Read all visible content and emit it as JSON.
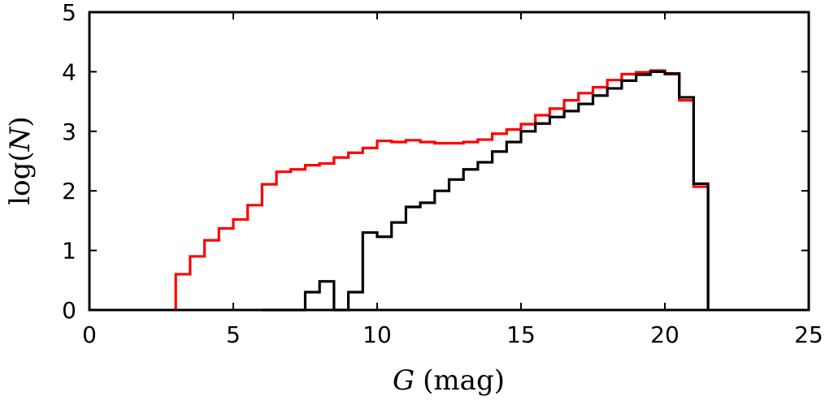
{
  "chart_data": {
    "type": "step-histogram",
    "xlabel_var": "G",
    "xlabel_unit": "(mag)",
    "ylabel_func": "log(",
    "ylabel_var": "N",
    "ylabel_close": ")",
    "xlim": [
      0,
      25
    ],
    "ylim": [
      0,
      5
    ],
    "xticks": [
      0,
      5,
      10,
      15,
      20,
      25
    ],
    "yticks": [
      0,
      1,
      2,
      3,
      4,
      5
    ],
    "xtick_labels": [
      "0",
      "5",
      "10",
      "15",
      "20",
      "25"
    ],
    "ytick_labels": [
      "0",
      "1",
      "2",
      "3",
      "4",
      "5"
    ],
    "bin_width": 0.5,
    "series": [
      {
        "name": "red",
        "color": "#ff0000",
        "bin_start": [
          3.0,
          3.5,
          4.0,
          4.5,
          5.0,
          5.5,
          6.0,
          6.5,
          7.0,
          7.5,
          8.0,
          8.5,
          9.0,
          9.5,
          10.0,
          10.5,
          11.0,
          11.5,
          12.0,
          12.5,
          13.0,
          13.5,
          14.0,
          14.5,
          15.0,
          15.5,
          16.0,
          16.5,
          17.0,
          17.5,
          18.0,
          18.5,
          19.0,
          19.5,
          20.0,
          20.5,
          21.0
        ],
        "values": [
          0.6,
          0.9,
          1.17,
          1.37,
          1.52,
          1.76,
          2.11,
          2.32,
          2.36,
          2.43,
          2.46,
          2.56,
          2.64,
          2.72,
          2.84,
          2.82,
          2.85,
          2.82,
          2.8,
          2.8,
          2.82,
          2.86,
          2.96,
          3.03,
          3.12,
          3.27,
          3.38,
          3.52,
          3.64,
          3.74,
          3.86,
          3.96,
          3.99,
          4.02,
          3.96,
          3.52,
          2.07
        ]
      },
      {
        "name": "black",
        "color": "#000000",
        "bin_start": [
          6.0,
          6.5,
          7.0,
          7.5,
          8.0,
          8.5,
          9.0,
          9.5,
          10.0,
          10.5,
          11.0,
          11.5,
          12.0,
          12.5,
          13.0,
          13.5,
          14.0,
          14.5,
          15.0,
          15.5,
          16.0,
          16.5,
          17.0,
          17.5,
          18.0,
          18.5,
          19.0,
          19.5,
          20.0,
          20.5,
          21.0
        ],
        "values": [
          0.0,
          0.0,
          0.0,
          0.3,
          0.48,
          0.0,
          0.3,
          1.3,
          1.23,
          1.47,
          1.73,
          1.8,
          2.0,
          2.19,
          2.36,
          2.48,
          2.66,
          2.82,
          3.0,
          3.13,
          3.24,
          3.34,
          3.46,
          3.6,
          3.72,
          3.85,
          3.95,
          4.0,
          3.97,
          3.57,
          2.12
        ]
      }
    ]
  }
}
